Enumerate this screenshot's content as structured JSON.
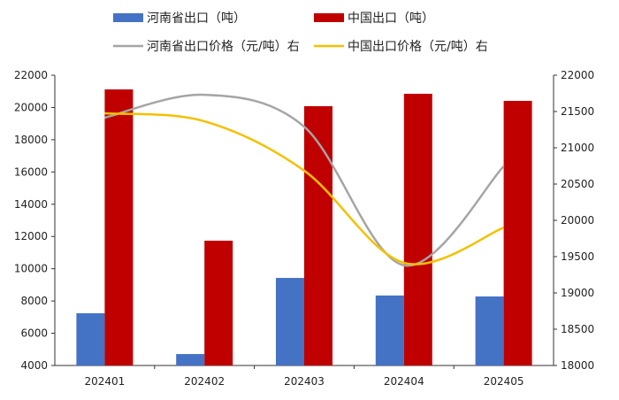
{
  "chart_data": {
    "type": "bar+line",
    "categories": [
      "202401",
      "202402",
      "202403",
      "202404",
      "202405"
    ],
    "series": [
      {
        "name": "河南省出口（吨）",
        "type": "bar",
        "axis": "left",
        "color": "#4472C4",
        "values": [
          7240,
          4710,
          9430,
          8340,
          8280
        ]
      },
      {
        "name": "中国出口（吨）",
        "type": "bar",
        "axis": "left",
        "color": "#C00000",
        "values": [
          21120,
          11740,
          20080,
          20850,
          20410
        ]
      },
      {
        "name": "河南省出口价格（元/吨）右",
        "type": "line",
        "axis": "right",
        "color": "#A5A5A5",
        "smooth": true,
        "values": [
          21415,
          21730,
          21290,
          19380,
          20745
        ]
      },
      {
        "name": "中国出口价格（元/吨）右",
        "type": "line",
        "axis": "right",
        "color": "#F5C000",
        "smooth": true,
        "values": [
          21475,
          21365,
          20685,
          19415,
          19900
        ]
      }
    ],
    "left_axis": {
      "ylim": [
        4000,
        22000
      ],
      "ticks": [
        "4000",
        "6000",
        "8000",
        "10000",
        "12000",
        "14000",
        "16000",
        "18000",
        "20000",
        "22000"
      ]
    },
    "right_axis": {
      "ylim": [
        18000,
        22000
      ],
      "ticks": [
        "18000",
        "18500",
        "19000",
        "19500",
        "20000",
        "20500",
        "21000",
        "21500",
        "22000"
      ]
    },
    "legend_position": "top",
    "grid": false
  }
}
